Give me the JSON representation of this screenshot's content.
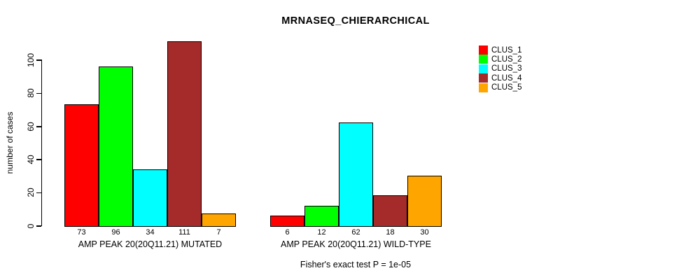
{
  "chart_data": {
    "type": "bar",
    "title": "MRNASEQ_CHIERARCHICAL",
    "ylabel": "number of cases",
    "xlabel": "",
    "categories": [
      "AMP PEAK 20(20Q11.21) MUTATED",
      "AMP PEAK 20(20Q11.21) WILD-TYPE"
    ],
    "series": [
      {
        "name": "CLUS_1",
        "color": "#FF0000",
        "values": [
          73,
          6
        ]
      },
      {
        "name": "CLUS_2",
        "color": "#00FF00",
        "values": [
          96,
          12
        ]
      },
      {
        "name": "CLUS_3",
        "color": "#00FFFF",
        "values": [
          34,
          62
        ]
      },
      {
        "name": "CLUS_4",
        "color": "#A52A2A",
        "values": [
          111,
          18
        ]
      },
      {
        "name": "CLUS_5",
        "color": "#FFA500",
        "values": [
          7,
          30
        ]
      }
    ],
    "yticks": [
      0,
      20,
      40,
      60,
      80,
      100
    ],
    "ylim": [
      0,
      111
    ],
    "grid": false,
    "legend_position": "right",
    "bar_value_labels_shown": true,
    "annotation": "Fisher's exact test P = 1e-05"
  },
  "colors": {
    "background": "#FFFFFF",
    "axis": "#000000",
    "text": "#000000"
  }
}
